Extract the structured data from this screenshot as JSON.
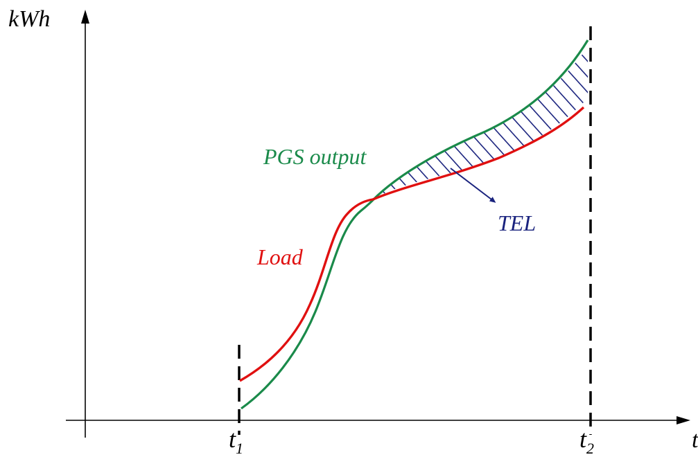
{
  "axes": {
    "y_label": "kWh",
    "x_label": "t"
  },
  "markers": {
    "t1": {
      "base": "t",
      "sub": "1"
    },
    "t2": {
      "base": "t",
      "sub": "2"
    }
  },
  "curves": {
    "pgs": {
      "label": "PGS output",
      "color": "#1a8a4a"
    },
    "load": {
      "label": "Load",
      "color": "#e01010"
    }
  },
  "region": {
    "label": "TEL",
    "color": "#1a237e"
  }
}
